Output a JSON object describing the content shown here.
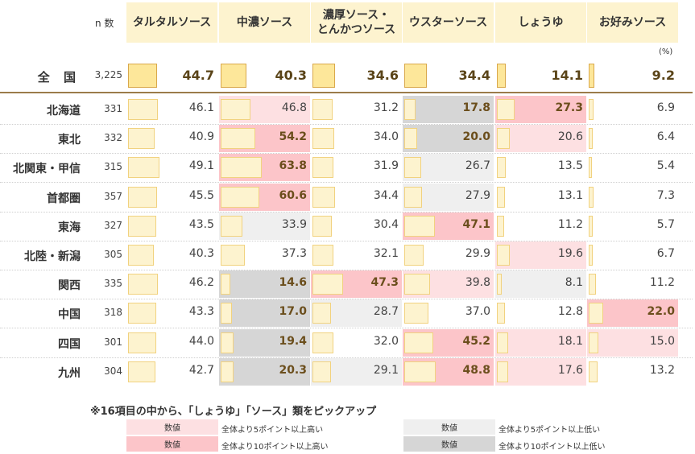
{
  "colors": {
    "header_bg": "#fdf3cf",
    "bar_fill": "#fdf3cf",
    "total_bar_fill": "#fde79a",
    "high5": "#fde0e2",
    "high10": "#fcc5c9",
    "low5": "#efefef",
    "low10": "#d6d6d6"
  },
  "header": {
    "n_label": "n 数",
    "unit": "(%)",
    "columns": [
      "タルタルソース",
      "中濃ソース",
      "濃厚ソース・\nとんかつソース",
      "ウスターソース",
      "しょうゆ",
      "お好みソース"
    ]
  },
  "total": {
    "label": "全 国",
    "n": "3,225",
    "values": [
      "44.7",
      "40.3",
      "34.6",
      "34.4",
      "14.1",
      "9.2"
    ]
  },
  "rows": [
    {
      "label": "北海道",
      "n": "331",
      "values": [
        "46.1",
        "46.8",
        "31.2",
        "17.8",
        "27.3",
        "6.9"
      ],
      "flags": [
        "",
        "h5",
        "",
        "l10",
        "h10",
        ""
      ]
    },
    {
      "label": "東北",
      "n": "332",
      "values": [
        "40.9",
        "54.2",
        "34.0",
        "20.0",
        "20.6",
        "6.4"
      ],
      "flags": [
        "",
        "h10",
        "",
        "l10",
        "h5",
        ""
      ]
    },
    {
      "label": "北関東・甲信",
      "n": "315",
      "values": [
        "49.1",
        "63.8",
        "31.9",
        "26.7",
        "13.5",
        "5.4"
      ],
      "flags": [
        "",
        "h10",
        "",
        "l5",
        "",
        ""
      ]
    },
    {
      "label": "首都圏",
      "n": "357",
      "values": [
        "45.5",
        "60.6",
        "34.4",
        "27.9",
        "13.1",
        "7.3"
      ],
      "flags": [
        "",
        "h10",
        "",
        "l5",
        "",
        ""
      ]
    },
    {
      "label": "東海",
      "n": "327",
      "values": [
        "43.5",
        "33.9",
        "30.4",
        "47.1",
        "11.2",
        "5.7"
      ],
      "flags": [
        "",
        "l5",
        "",
        "h10",
        "",
        ""
      ]
    },
    {
      "label": "北陸・新潟",
      "n": "305",
      "values": [
        "40.3",
        "37.3",
        "32.1",
        "29.9",
        "19.6",
        "6.7"
      ],
      "flags": [
        "",
        "",
        "",
        "",
        "h5",
        ""
      ]
    },
    {
      "label": "関西",
      "n": "335",
      "values": [
        "46.2",
        "14.6",
        "47.3",
        "39.8",
        "8.1",
        "11.2"
      ],
      "flags": [
        "",
        "l10",
        "h10",
        "h5",
        "l5",
        ""
      ]
    },
    {
      "label": "中国",
      "n": "318",
      "values": [
        "43.3",
        "17.0",
        "28.7",
        "37.0",
        "12.8",
        "22.0"
      ],
      "flags": [
        "",
        "l10",
        "l5",
        "",
        "",
        "h10"
      ]
    },
    {
      "label": "四国",
      "n": "301",
      "values": [
        "44.0",
        "19.4",
        "32.0",
        "45.2",
        "18.1",
        "15.0"
      ],
      "flags": [
        "",
        "l10",
        "",
        "h10",
        "h5",
        "h5"
      ]
    },
    {
      "label": "九州",
      "n": "304",
      "values": [
        "42.7",
        "20.3",
        "29.1",
        "48.8",
        "17.6",
        "13.2"
      ],
      "flags": [
        "",
        "l10",
        "l5",
        "h10",
        "h5",
        ""
      ]
    }
  ],
  "legend": {
    "title": "※16項目の中から、「しょうゆ」「ソース」類をピックアップ",
    "swatch_label": "数値",
    "high5": "全体より5ポイント以上高い",
    "high10": "全体より10ポイント以上高い",
    "low5": "全体より5ポイント以上低い",
    "low10": "全体より10ポイント以上低い"
  },
  "chart_data": {
    "type": "table",
    "categories": [
      "タルタルソース",
      "中濃ソース",
      "濃厚ソース・とんかつソース",
      "ウスターソース",
      "しょうゆ",
      "お好みソース"
    ],
    "unit": "(%)",
    "series": [
      {
        "name": "全 国",
        "n": 3225,
        "values": [
          44.7,
          40.3,
          34.6,
          34.4,
          14.1,
          9.2
        ]
      },
      {
        "name": "北海道",
        "n": 331,
        "values": [
          46.1,
          46.8,
          31.2,
          17.8,
          27.3,
          6.9
        ]
      },
      {
        "name": "東北",
        "n": 332,
        "values": [
          40.9,
          54.2,
          34.0,
          20.0,
          20.6,
          6.4
        ]
      },
      {
        "name": "北関東・甲信",
        "n": 315,
        "values": [
          49.1,
          63.8,
          31.9,
          26.7,
          13.5,
          5.4
        ]
      },
      {
        "name": "首都圏",
        "n": 357,
        "values": [
          45.5,
          60.6,
          34.4,
          27.9,
          13.1,
          7.3
        ]
      },
      {
        "name": "東海",
        "n": 327,
        "values": [
          43.5,
          33.9,
          30.4,
          47.1,
          11.2,
          5.7
        ]
      },
      {
        "name": "北陸・新潟",
        "n": 305,
        "values": [
          40.3,
          37.3,
          32.1,
          29.9,
          19.6,
          6.7
        ]
      },
      {
        "name": "関西",
        "n": 335,
        "values": [
          46.2,
          14.6,
          47.3,
          39.8,
          8.1,
          11.2
        ]
      },
      {
        "name": "中国",
        "n": 318,
        "values": [
          43.3,
          17.0,
          28.7,
          37.0,
          12.8,
          22.0
        ]
      },
      {
        "name": "四国",
        "n": 301,
        "values": [
          44.0,
          19.4,
          32.0,
          45.2,
          18.1,
          15.0
        ]
      },
      {
        "name": "九州",
        "n": 304,
        "values": [
          42.7,
          20.3,
          29.1,
          48.8,
          17.6,
          13.2
        ]
      }
    ]
  }
}
